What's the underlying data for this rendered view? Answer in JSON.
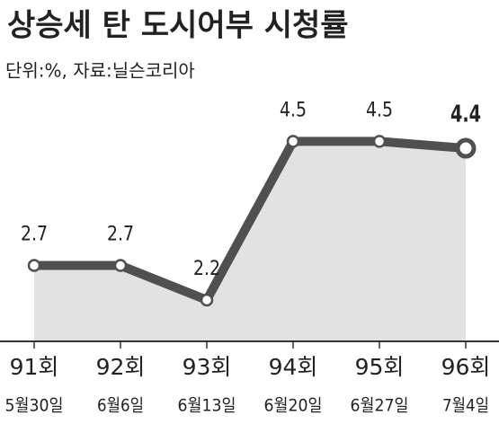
{
  "chart_data": {
    "type": "line",
    "title": "상승세 탄 도시어부 시청률",
    "subtitle": "단위:%, 자료:닐슨코리아",
    "categories": [
      "91회",
      "92회",
      "93회",
      "94회",
      "95회",
      "96회"
    ],
    "dates": [
      "5월30일",
      "6월6일",
      "6월13일",
      "6월20일",
      "6월27일",
      "7월4일"
    ],
    "values": [
      2.7,
      2.7,
      2.2,
      4.5,
      4.5,
      4.4
    ],
    "color": "#505050",
    "area_color": "#e2e2e2",
    "ylim": [
      1.6,
      5.0
    ],
    "highlight_last": true
  }
}
